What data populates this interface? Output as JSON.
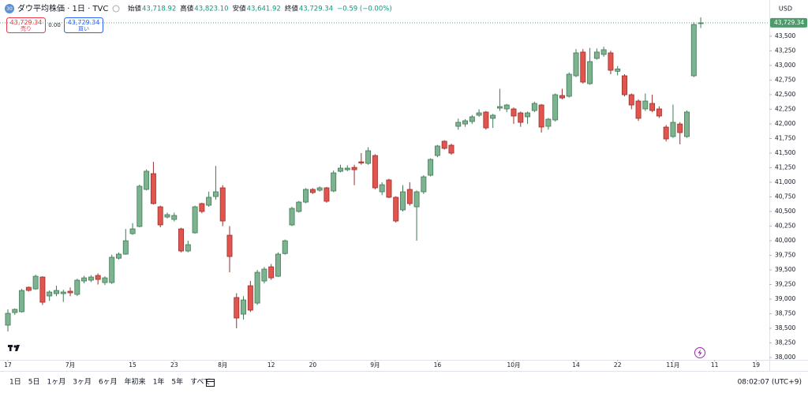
{
  "header": {
    "icon": "30",
    "symbol": "ダウ平均株価 · 1日 · TVC",
    "ohlc": [
      {
        "label": "始値",
        "value": "43,718.92"
      },
      {
        "label": "高値",
        "value": "43,823.10"
      },
      {
        "label": "安値",
        "value": "43,641.92"
      },
      {
        "label": "終値",
        "value": "43,729.34"
      }
    ],
    "change": "−0.59 (−0.00%)",
    "sell": {
      "price": "43,729.34",
      "label": "売り"
    },
    "spread": "0.00",
    "buy": {
      "price": "43,729.34",
      "label": "買い"
    },
    "currency": "USD"
  },
  "toolbar": {
    "ranges": [
      "1日",
      "5日",
      "1ヶ月",
      "3ヶ月",
      "6ヶ月",
      "年初来",
      "1年",
      "5年",
      "すべて"
    ],
    "time": "08:02:07 (UTC+9)"
  },
  "chart_data": {
    "type": "candlestick",
    "up_color": "#7db38f",
    "up_border": "#3f7a57",
    "down_color": "#e2554f",
    "down_border": "#9b2f2b",
    "open": [
      38554,
      38770,
      38784,
      39202,
      39175,
      39378,
      39054,
      39094,
      39094,
      39135,
      39081,
      39310,
      39324,
      39405,
      39283,
      39283,
      39700,
      39770,
      40121,
      40243,
      40878,
      41148,
      40580,
      40405,
      40364,
      40202,
      39824,
      40135,
      40635,
      40607,
      40756,
      40905,
      40094,
      39027,
      38743,
      39229,
      38932,
      39310,
      39553,
      39391,
      39780,
      40270,
      40500,
      40661,
      40878,
      40864,
      40905,
      40851,
      41188,
      41215,
      41255,
      41350,
      41323,
      41458,
      40837,
      41040,
      40743,
      40527,
      40878,
      40580,
      40837,
      41121,
      41458,
      41702,
      41634,
      41958,
      41998,
      42040,
      42148,
      42202,
      42094,
      42269,
      42256,
      42256,
      42188,
      42121,
      42228,
      42323,
      41958,
      42067,
      42485,
      42472,
      42823,
      43229,
      42688,
      43120,
      43188,
      43215,
      42900,
      42823,
      42499,
      42391,
      42256,
      42350,
      42256,
      41945,
      41783,
      41998,
      41783,
      42823,
      43718.92
    ],
    "high": [
      38824,
      38840,
      39175,
      39215,
      39418,
      39391,
      39150,
      39230,
      39160,
      39200,
      39350,
      39400,
      39410,
      39440,
      39390,
      39760,
      39800,
      40200,
      40300,
      40960,
      41220,
      41350,
      40600,
      40480,
      40480,
      40220,
      40000,
      40600,
      40650,
      40840,
      41280,
      40950,
      40250,
      39100,
      39050,
      39310,
      39500,
      39550,
      39600,
      39800,
      40020,
      40580,
      40680,
      40900,
      40900,
      40930,
      40920,
      41200,
      41300,
      41290,
      41300,
      41500,
      41600,
      41480,
      41000,
      41060,
      40760,
      40950,
      41000,
      40860,
      41120,
      41410,
      41640,
      41720,
      41660,
      42090,
      42080,
      42150,
      42250,
      42220,
      42170,
      42600,
      42340,
      42280,
      42210,
      42210,
      42380,
      42340,
      42100,
      42520,
      42600,
      42880,
      43280,
      43280,
      43300,
      43290,
      43320,
      43250,
      42990,
      42850,
      42520,
      42420,
      42520,
      42500,
      42300,
      41980,
      42330,
      42030,
      42230,
      43740,
      43823.1
    ],
    "low": [
      38446,
      38730,
      38770,
      39130,
      39160,
      38900,
      38970,
      39050,
      38950,
      39050,
      39054,
      39270,
      39290,
      39250,
      39240,
      39260,
      39680,
      39760,
      40100,
      40230,
      40860,
      40620,
      40230,
      40380,
      40330,
      39800,
      39800,
      40120,
      40470,
      40580,
      40700,
      40250,
      39460,
      38500,
      38650,
      38780,
      38900,
      39270,
      39330,
      39380,
      39760,
      40250,
      40480,
      40640,
      40800,
      40840,
      40650,
      40830,
      41170,
      41190,
      40950,
      41300,
      41300,
      40880,
      40780,
      40730,
      40310,
      40500,
      40600,
      40000,
      40800,
      41100,
      41430,
      41560,
      41470,
      41900,
      41950,
      42000,
      42120,
      41900,
      41930,
      42220,
      42200,
      42000,
      41950,
      42000,
      42200,
      41850,
      41900,
      42040,
      42420,
      42450,
      42800,
      42690,
      42670,
      43100,
      43150,
      42850,
      42830,
      42470,
      42250,
      42050,
      42220,
      42200,
      42100,
      41700,
      41760,
      41650,
      41760,
      42800,
      43641.92
    ],
    "close": [
      38757,
      38824,
      39148,
      39148,
      39391,
      38946,
      39121,
      39148,
      39121,
      39108,
      39324,
      39364,
      39378,
      39337,
      39364,
      39716,
      39770,
      39999,
      40202,
      40932,
      41189,
      40635,
      40270,
      40446,
      40432,
      39824,
      39932,
      40580,
      40500,
      40743,
      40837,
      40337,
      39729,
      38676,
      38986,
      38811,
      39459,
      39513,
      39364,
      39770,
      39999,
      40553,
      40661,
      40878,
      40824,
      40905,
      40675,
      41161,
      41242,
      41242,
      41215,
      41330,
      41540,
      40905,
      40958,
      40743,
      40337,
      40837,
      40635,
      40837,
      41094,
      41391,
      41621,
      41580,
      41499,
      42026,
      42053,
      42121,
      42188,
      41931,
      42148,
      42296,
      42323,
      42134,
      42026,
      42188,
      42350,
      41945,
      42080,
      42499,
      42444,
      42850,
      43215,
      42715,
      43066,
      43229,
      43269,
      42917,
      42940,
      42499,
      42323,
      42094,
      42391,
      42228,
      42134,
      41742,
      42026,
      41850,
      42202,
      43701,
      43729.34
    ],
    "xlim": [
      -1.14,
      109.9
    ],
    "xticks": [
      {
        "value": 0,
        "label": "17"
      },
      {
        "value": 9,
        "label": "7月"
      },
      {
        "value": 18,
        "label": "15"
      },
      {
        "value": 24,
        "label": "23"
      },
      {
        "value": 31,
        "label": "8月"
      },
      {
        "value": 38,
        "label": "12"
      },
      {
        "value": 44,
        "label": "20"
      },
      {
        "value": 53,
        "label": "9月"
      },
      {
        "value": 62,
        "label": "16"
      },
      {
        "value": 73,
        "label": "10月"
      },
      {
        "value": 82,
        "label": "14"
      },
      {
        "value": 88,
        "label": "22"
      },
      {
        "value": 96,
        "label": "11月"
      },
      {
        "value": 102,
        "label": "11"
      },
      {
        "value": 108,
        "label": "19"
      }
    ],
    "ylim": [
      37960,
      43850
    ],
    "yticks": [
      {
        "value": 38000,
        "label": "38,000"
      },
      {
        "value": 38250,
        "label": "38,250"
      },
      {
        "value": 38500,
        "label": "38,500"
      },
      {
        "value": 38750,
        "label": "38,750"
      },
      {
        "value": 39000,
        "label": "39,000"
      },
      {
        "value": 39250,
        "label": "39,250"
      },
      {
        "value": 39500,
        "label": "39,500"
      },
      {
        "value": 39750,
        "label": "39,750"
      },
      {
        "value": 40000,
        "label": "40,000"
      },
      {
        "value": 40250,
        "label": "40,250"
      },
      {
        "value": 40500,
        "label": "40,500"
      },
      {
        "value": 40750,
        "label": "40,750"
      },
      {
        "value": 41000,
        "label": "41,000"
      },
      {
        "value": 41250,
        "label": "41,250"
      },
      {
        "value": 41500,
        "label": "41,500"
      },
      {
        "value": 41750,
        "label": "41,750"
      },
      {
        "value": 42000,
        "label": "42,000"
      },
      {
        "value": 42250,
        "label": "42,250"
      },
      {
        "value": 42500,
        "label": "42,500"
      },
      {
        "value": 42750,
        "label": "42,750"
      },
      {
        "value": 43000,
        "label": "43,000"
      },
      {
        "value": 43250,
        "label": "43,250"
      },
      {
        "value": 43500,
        "label": "43,500"
      }
    ],
    "last_price": {
      "value": 43729.34,
      "label": "43,729.34"
    },
    "last_price_color": "#4e9a6b",
    "grid": false
  }
}
